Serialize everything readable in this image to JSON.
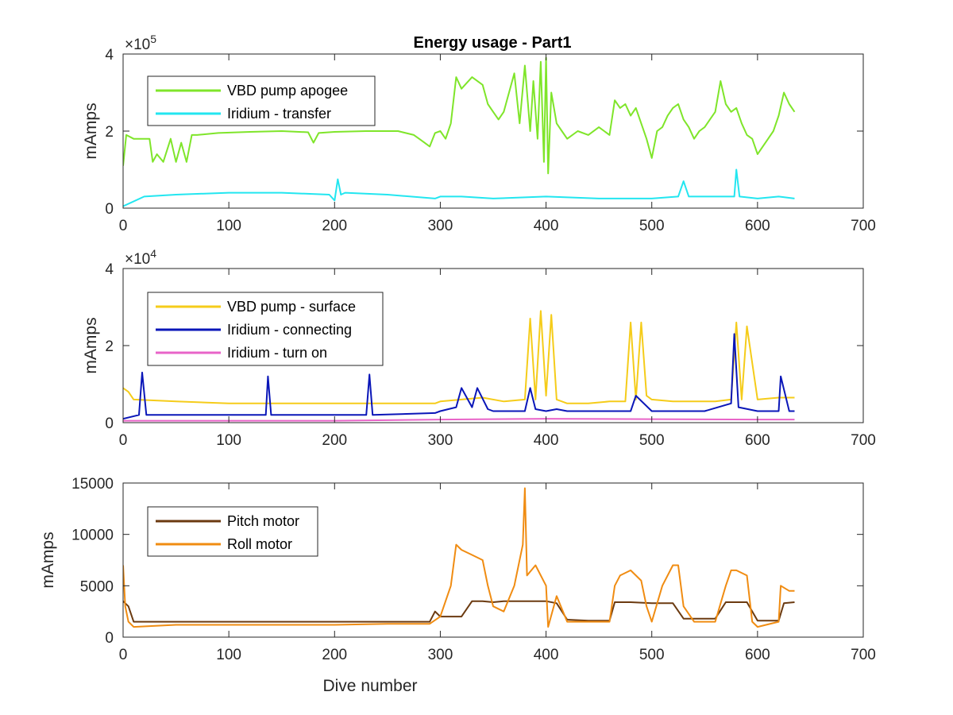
{
  "chart_data": [
    {
      "type": "line",
      "title": "Energy usage - Part1",
      "xlabel": "",
      "ylabel": "mAmps",
      "exponent": "× 10^5",
      "exponent_base": "×10",
      "exponent_power": "5",
      "xlim": [
        0,
        700
      ],
      "ylim": [
        0,
        400000
      ],
      "xticks": [
        0,
        100,
        200,
        300,
        400,
        500,
        600,
        700
      ],
      "yticks": [
        0,
        200000,
        400000
      ],
      "ytick_labels": [
        "0",
        "2",
        "4"
      ],
      "legend_position": "top-left",
      "series": [
        {
          "name": "VBD pump apogee",
          "color": "#7FE52A",
          "x": [
            0,
            3,
            10,
            25,
            28,
            32,
            38,
            45,
            50,
            55,
            60,
            65,
            70,
            90,
            120,
            150,
            175,
            180,
            185,
            200,
            230,
            260,
            275,
            280,
            285,
            290,
            295,
            300,
            305,
            310,
            315,
            320,
            330,
            340,
            345,
            350,
            355,
            360,
            370,
            375,
            380,
            385,
            388,
            392,
            395,
            398,
            400,
            402,
            405,
            410,
            415,
            420,
            430,
            440,
            450,
            455,
            460,
            465,
            470,
            475,
            480,
            485,
            490,
            495,
            500,
            505,
            510,
            515,
            520,
            525,
            530,
            535,
            540,
            545,
            550,
            555,
            560,
            565,
            570,
            575,
            580,
            585,
            590,
            595,
            600,
            605,
            610,
            615,
            620,
            625,
            630,
            635
          ],
          "y": [
            110000,
            190000,
            180000,
            180000,
            120000,
            140000,
            120000,
            180000,
            120000,
            170000,
            120000,
            190000,
            190000,
            195000,
            198000,
            200000,
            197000,
            170000,
            195000,
            198000,
            200000,
            200000,
            190000,
            180000,
            170000,
            160000,
            195000,
            200000,
            180000,
            220000,
            340000,
            310000,
            340000,
            320000,
            270000,
            250000,
            230000,
            250000,
            350000,
            220000,
            370000,
            200000,
            330000,
            180000,
            380000,
            120000,
            390000,
            90000,
            300000,
            220000,
            200000,
            180000,
            200000,
            190000,
            210000,
            200000,
            190000,
            280000,
            260000,
            270000,
            240000,
            260000,
            220000,
            180000,
            130000,
            200000,
            210000,
            240000,
            260000,
            270000,
            230000,
            210000,
            180000,
            200000,
            210000,
            230000,
            250000,
            330000,
            270000,
            250000,
            260000,
            220000,
            190000,
            180000,
            140000,
            160000,
            180000,
            200000,
            240000,
            300000,
            270000,
            250000
          ]
        },
        {
          "name": "Iridium - transfer",
          "color": "#23E6F0",
          "x": [
            0,
            20,
            50,
            100,
            150,
            195,
            200,
            203,
            206,
            210,
            250,
            295,
            300,
            320,
            350,
            400,
            450,
            500,
            525,
            530,
            535,
            560,
            578,
            580,
            583,
            600,
            620,
            635
          ],
          "y": [
            5000,
            30000,
            35000,
            40000,
            40000,
            35000,
            20000,
            75000,
            35000,
            40000,
            35000,
            25000,
            30000,
            30000,
            25000,
            30000,
            25000,
            25000,
            30000,
            70000,
            30000,
            30000,
            30000,
            100000,
            30000,
            25000,
            30000,
            25000
          ]
        }
      ]
    },
    {
      "type": "line",
      "title": "",
      "xlabel": "",
      "ylabel": "mAmps",
      "exponent": "× 10^4",
      "exponent_base": "×10",
      "exponent_power": "4",
      "xlim": [
        0,
        700
      ],
      "ylim": [
        0,
        40000
      ],
      "xticks": [
        0,
        100,
        200,
        300,
        400,
        500,
        600,
        700
      ],
      "yticks": [
        0,
        20000,
        40000
      ],
      "ytick_labels": [
        "0",
        "2",
        "4"
      ],
      "legend_position": "top-left",
      "series": [
        {
          "name": "VBD pump - surface",
          "color": "#F5CC1A",
          "x": [
            0,
            5,
            10,
            50,
            100,
            150,
            200,
            250,
            295,
            300,
            320,
            340,
            360,
            380,
            385,
            390,
            395,
            400,
            405,
            410,
            415,
            420,
            440,
            460,
            475,
            480,
            485,
            490,
            495,
            500,
            520,
            540,
            560,
            575,
            580,
            585,
            590,
            600,
            620,
            635
          ],
          "y": [
            9000,
            8000,
            6000,
            5500,
            5000,
            5000,
            5000,
            5000,
            5000,
            5500,
            6000,
            6500,
            5500,
            6000,
            27000,
            6000,
            29000,
            7000,
            28000,
            6000,
            5500,
            5000,
            5000,
            5500,
            5500,
            26000,
            6000,
            26000,
            7000,
            6000,
            5500,
            5500,
            5500,
            6000,
            26000,
            6000,
            25000,
            6000,
            6500,
            6500
          ]
        },
        {
          "name": "Iridium - connecting",
          "color": "#0A16B8",
          "x": [
            0,
            15,
            18,
            22,
            50,
            100,
            135,
            137,
            140,
            200,
            230,
            233,
            236,
            295,
            300,
            315,
            320,
            330,
            335,
            345,
            350,
            380,
            385,
            390,
            400,
            410,
            420,
            450,
            480,
            485,
            500,
            520,
            550,
            575,
            578,
            582,
            600,
            620,
            622,
            630,
            635
          ],
          "y": [
            1000,
            2000,
            13000,
            2000,
            2000,
            2000,
            2000,
            12000,
            2000,
            2000,
            2000,
            12500,
            2000,
            2500,
            3000,
            4000,
            9000,
            4000,
            9000,
            3500,
            3000,
            3000,
            9000,
            3500,
            3000,
            3500,
            3000,
            3000,
            3000,
            7000,
            3000,
            3000,
            3000,
            5000,
            23000,
            4000,
            3000,
            3000,
            12000,
            3000,
            3000
          ]
        },
        {
          "name": "Iridium - turn on",
          "color": "#E864C8",
          "x": [
            0,
            100,
            200,
            300,
            400,
            500,
            600,
            635
          ],
          "y": [
            500,
            500,
            500,
            800,
            1000,
            900,
            800,
            800
          ]
        }
      ]
    },
    {
      "type": "line",
      "title": "",
      "xlabel": "Dive number",
      "ylabel": "mAmps",
      "xlim": [
        0,
        700
      ],
      "ylim": [
        0,
        15000
      ],
      "xticks": [
        0,
        100,
        200,
        300,
        400,
        500,
        600,
        700
      ],
      "yticks": [
        0,
        5000,
        10000,
        15000
      ],
      "ytick_labels": [
        "0",
        "5000",
        "10000",
        "15000"
      ],
      "legend_position": "top-left",
      "series": [
        {
          "name": "Pitch motor",
          "color": "#6B3A10",
          "x": [
            0,
            5,
            10,
            50,
            100,
            150,
            200,
            250,
            290,
            295,
            300,
            320,
            330,
            340,
            350,
            360,
            380,
            400,
            410,
            420,
            440,
            460,
            465,
            480,
            500,
            520,
            530,
            540,
            560,
            570,
            590,
            600,
            620,
            625,
            635
          ],
          "y": [
            3500,
            3000,
            1500,
            1500,
            1500,
            1500,
            1500,
            1500,
            1500,
            2500,
            2000,
            2000,
            3500,
            3500,
            3400,
            3500,
            3500,
            3500,
            3300,
            1700,
            1600,
            1600,
            3400,
            3400,
            3300,
            3300,
            1800,
            1800,
            1800,
            3400,
            3400,
            1600,
            1600,
            3300,
            3400
          ]
        },
        {
          "name": "Roll motor",
          "color": "#F08C12",
          "x": [
            0,
            2,
            5,
            10,
            50,
            100,
            150,
            200,
            250,
            290,
            300,
            310,
            315,
            320,
            330,
            340,
            345,
            350,
            360,
            370,
            378,
            380,
            382,
            390,
            400,
            402,
            410,
            420,
            440,
            460,
            465,
            470,
            480,
            490,
            495,
            500,
            510,
            520,
            525,
            530,
            540,
            560,
            570,
            575,
            580,
            590,
            595,
            600,
            620,
            622,
            630,
            635
          ],
          "y": [
            7000,
            3000,
            1500,
            1000,
            1200,
            1200,
            1200,
            1200,
            1300,
            1300,
            2000,
            5000,
            9000,
            8500,
            8000,
            7500,
            5000,
            3000,
            2500,
            5000,
            9000,
            14500,
            6000,
            7000,
            5000,
            1000,
            4000,
            1500,
            1500,
            1500,
            5000,
            6000,
            6500,
            5500,
            3000,
            1500,
            5000,
            7000,
            7000,
            3000,
            1500,
            1500,
            5000,
            6500,
            6500,
            6000,
            1500,
            1000,
            1500,
            5000,
            4500,
            4500
          ]
        }
      ]
    }
  ]
}
